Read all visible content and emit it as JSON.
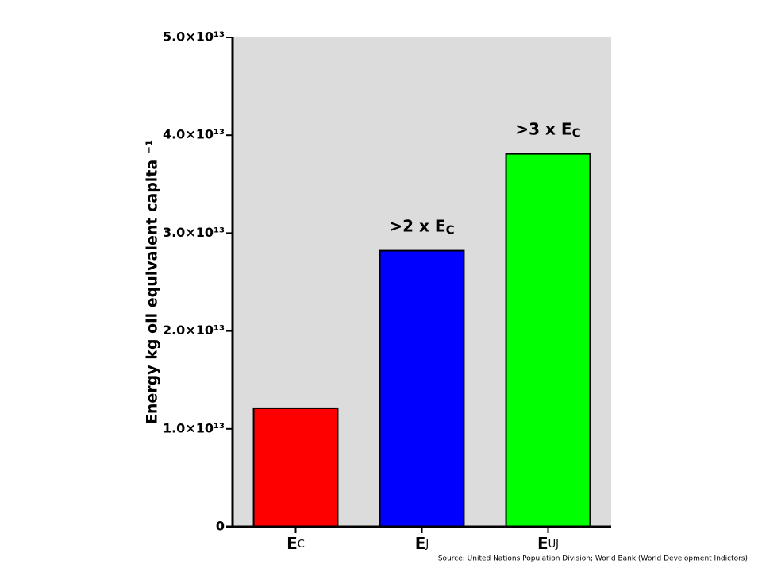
{
  "chart_data": {
    "type": "bar",
    "y_label": "Energy kg oil equivalent capita ⁻¹",
    "categories": [
      "EC",
      "EJ",
      "EUJ"
    ],
    "values": [
      12100000000000.0,
      28200000000000.0,
      38100000000000.0
    ],
    "colors": [
      "#ff0000",
      "#0000ff",
      "#00ff00"
    ],
    "annotations": [
      null,
      {
        "text": ">2 x E",
        "sub": "C"
      },
      {
        "text": ">3 x E",
        "sub": "C"
      }
    ],
    "ylim": [
      0,
      50000000000000.0
    ],
    "yticks": [
      0,
      {
        "value": 10000000000000.0,
        "label": "1.0×10¹³"
      },
      {
        "value": 20000000000000.0,
        "label": "2.0×10¹³"
      },
      {
        "value": 30000000000000.0,
        "label": "3.0×10¹³"
      },
      {
        "value": 40000000000000.0,
        "label": "4.0×10¹³"
      },
      {
        "value": 50000000000000.0,
        "label": "5.0×10¹³"
      }
    ],
    "source": "Source: United Nations Population Division; World Bank (World Development Indictors)"
  }
}
